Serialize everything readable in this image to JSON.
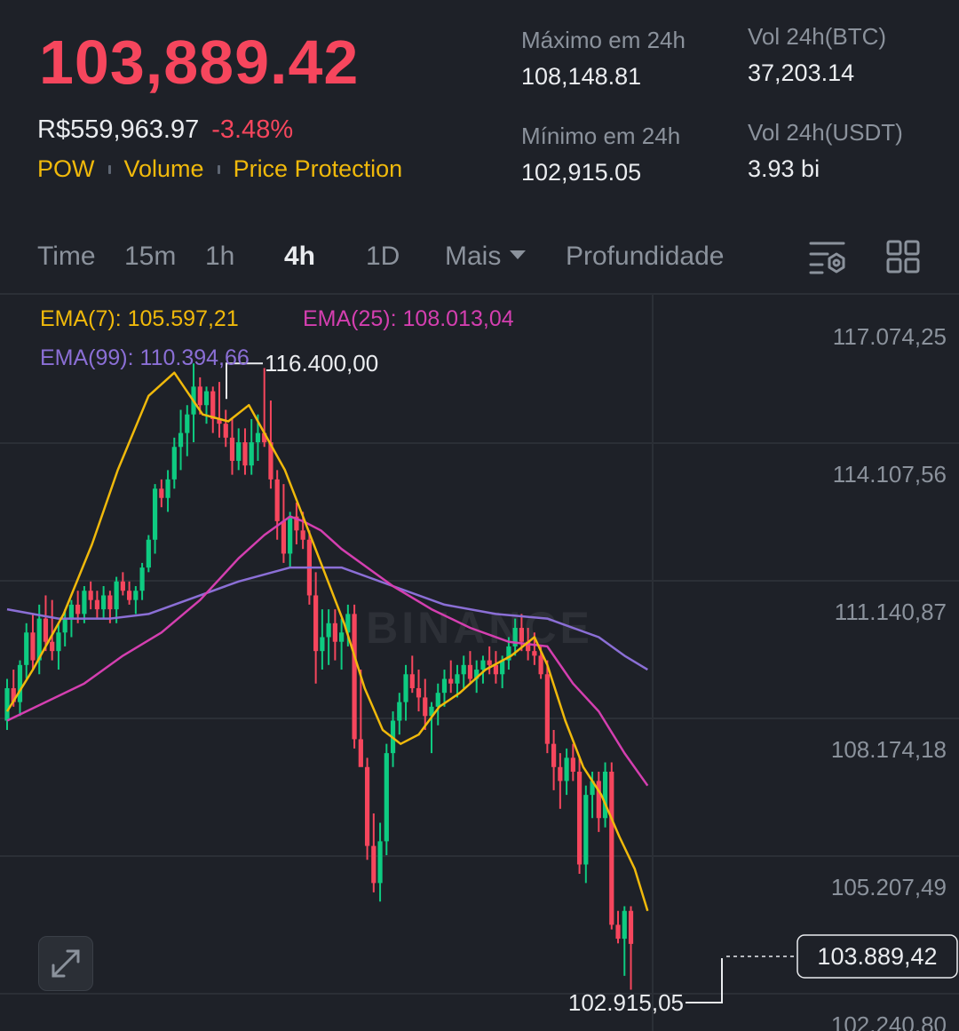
{
  "header": {
    "last_price": "103,889.42",
    "fiat_price": "R$559,963.97",
    "change_pct": "-3.48%",
    "tags": [
      "POW",
      "Volume",
      "Price Protection"
    ]
  },
  "stats": {
    "high_label": "Máximo em 24h",
    "high_value": "108,148.81",
    "low_label": "Mínimo em 24h",
    "low_value": "102,915.05",
    "vol_btc_label": "Vol 24h(BTC)",
    "vol_btc_value": "37,203.14",
    "vol_usdt_label": "Vol 24h(USDT)",
    "vol_usdt_value": "3.93 bi"
  },
  "tabs": {
    "time": "Time",
    "m15": "15m",
    "h1": "1h",
    "h4": "4h",
    "d1": "1D",
    "more": "Mais",
    "depth": "Profundidade",
    "active": "4h"
  },
  "icons": {
    "indicator_settings": "indicator-settings-icon",
    "layout": "layout-grid-icon",
    "expand": "expand-arrows-icon"
  },
  "colors": {
    "up": "#0ecb81",
    "down": "#f6465d",
    "ema7": "#f0b90b",
    "ema25": "#d43fb0",
    "ema99": "#8b6fd6",
    "accent": "#f0b90b",
    "background": "#1e2128"
  },
  "legend": {
    "ema7": "EMA(7): 105.597,21",
    "ema25": "EMA(25): 108.013,04",
    "ema99": "EMA(99): 110.394,66"
  },
  "watermark": "BINANCE",
  "chart_data": {
    "type": "candlestick",
    "interval": "4h",
    "ylim": [
      102240.8,
      117074.25
    ],
    "y_ticks": [
      "117.074,25",
      "114.107,56",
      "111.140,87",
      "108.174,18",
      "105.207,49",
      "102.240,80"
    ],
    "y_tick_values": [
      117074.25,
      114107.56,
      111140.87,
      108174.18,
      105207.49,
      102240.8
    ],
    "annotations": {
      "max_label": "116.400,00",
      "max_value": 116400.0,
      "min_label": "102.915,05",
      "min_value": 102915.05,
      "current_label": "103.889,42",
      "current_value": 103889.42
    },
    "candles": [
      [
        108700,
        109600,
        108500,
        109400
      ],
      [
        109400,
        109800,
        109000,
        109100
      ],
      [
        109100,
        110000,
        108800,
        109900
      ],
      [
        109900,
        110800,
        109600,
        110600
      ],
      [
        110600,
        111000,
        109800,
        110000
      ],
      [
        110000,
        111200,
        109700,
        110900
      ],
      [
        110900,
        111400,
        110200,
        110400
      ],
      [
        110400,
        111300,
        110000,
        110200
      ],
      [
        110200,
        110800,
        109800,
        110600
      ],
      [
        110600,
        111100,
        110300,
        110900
      ],
      [
        110900,
        111300,
        110500,
        111200
      ],
      [
        111200,
        111500,
        110800,
        111000
      ],
      [
        111000,
        111600,
        110800,
        111500
      ],
      [
        111500,
        111700,
        111100,
        111300
      ],
      [
        111300,
        111500,
        110900,
        111100
      ],
      [
        111100,
        111600,
        110900,
        111400
      ],
      [
        111400,
        111500,
        110800,
        111100
      ],
      [
        111100,
        111800,
        110800,
        111700
      ],
      [
        111700,
        111900,
        111400,
        111500
      ],
      [
        111500,
        111700,
        111200,
        111300
      ],
      [
        111300,
        111600,
        111000,
        111500
      ],
      [
        111500,
        112100,
        111300,
        112000
      ],
      [
        112000,
        112700,
        111900,
        112600
      ],
      [
        112600,
        113800,
        112300,
        113700
      ],
      [
        113700,
        113900,
        113300,
        113500
      ],
      [
        113500,
        114100,
        113200,
        113900
      ],
      [
        113900,
        114800,
        113700,
        114600
      ],
      [
        114600,
        115400,
        114100,
        114900
      ],
      [
        114900,
        115500,
        114400,
        115300
      ],
      [
        115300,
        116400,
        114700,
        115900
      ],
      [
        115900,
        116100,
        115300,
        115500
      ],
      [
        115500,
        115900,
        115100,
        115800
      ],
      [
        115800,
        115900,
        114900,
        115200
      ],
      [
        115200,
        116000,
        114800,
        115100
      ],
      [
        115100,
        115400,
        114600,
        114800
      ],
      [
        114800,
        115200,
        114000,
        114300
      ],
      [
        114300,
        115000,
        114100,
        114700
      ],
      [
        114700,
        115000,
        114000,
        114200
      ],
      [
        114200,
        115200,
        114000,
        114700
      ],
      [
        114700,
        115300,
        114300,
        114900
      ],
      [
        114900,
        116300,
        114600,
        114700
      ],
      [
        114700,
        115600,
        113700,
        113900
      ],
      [
        113900,
        114100,
        112600,
        113000
      ],
      [
        113000,
        113800,
        112100,
        112300
      ],
      [
        112300,
        113200,
        112000,
        113100
      ],
      [
        113100,
        113400,
        112500,
        112800
      ],
      [
        112800,
        113200,
        112400,
        112600
      ],
      [
        112600,
        112800,
        111200,
        111400
      ],
      [
        111400,
        111900,
        109500,
        110200
      ],
      [
        110200,
        111100,
        109800,
        110500
      ],
      [
        110500,
        111100,
        109900,
        110800
      ],
      [
        110800,
        111100,
        110000,
        110400
      ],
      [
        110400,
        110900,
        109800,
        110600
      ],
      [
        110600,
        111200,
        110300,
        111000
      ],
      [
        111000,
        111200,
        108100,
        108300
      ],
      [
        108300,
        109800,
        107800,
        107700
      ],
      [
        107700,
        107900,
        105700,
        106000
      ],
      [
        106000,
        106700,
        105000,
        105200
      ],
      [
        105200,
        106500,
        104800,
        106100
      ],
      [
        106100,
        108200,
        105800,
        108000
      ],
      [
        108000,
        108900,
        107700,
        108700
      ],
      [
        108700,
        109300,
        108400,
        109100
      ],
      [
        109100,
        109900,
        108700,
        109700
      ],
      [
        109700,
        110100,
        109300,
        109400
      ],
      [
        109400,
        109800,
        108900,
        109200
      ],
      [
        109200,
        109600,
        108500,
        108800
      ],
      [
        108800,
        109100,
        108000,
        109000
      ],
      [
        109000,
        109500,
        108600,
        109300
      ],
      [
        109300,
        109800,
        109000,
        109600
      ],
      [
        109600,
        110000,
        109300,
        109500
      ],
      [
        109500,
        109900,
        109200,
        109700
      ],
      [
        109700,
        110100,
        109400,
        109900
      ],
      [
        109900,
        110200,
        109500,
        109600
      ],
      [
        109600,
        110000,
        109300,
        109800
      ],
      [
        109800,
        110100,
        109500,
        110000
      ],
      [
        110000,
        110300,
        109700,
        109900
      ],
      [
        109900,
        110200,
        109500,
        109700
      ],
      [
        109700,
        110100,
        109400,
        110000
      ],
      [
        110000,
        110500,
        109800,
        110300
      ],
      [
        110300,
        110900,
        110100,
        110700
      ],
      [
        110700,
        111000,
        110200,
        110400
      ],
      [
        110400,
        110700,
        110000,
        110200
      ],
      [
        110200,
        110600,
        109900,
        110100
      ],
      [
        110100,
        110300,
        109600,
        109700
      ],
      [
        109700,
        110000,
        108000,
        108200
      ],
      [
        108200,
        108500,
        107200,
        107700
      ],
      [
        107700,
        108000,
        106800,
        107400
      ],
      [
        107400,
        108100,
        107100,
        107900
      ],
      [
        107900,
        108200,
        107400,
        107600
      ],
      [
        107600,
        107900,
        105400,
        105600
      ],
      [
        105600,
        107300,
        105200,
        107100
      ],
      [
        107100,
        107600,
        106600,
        107400
      ],
      [
        107400,
        107600,
        106300,
        106600
      ],
      [
        106600,
        107800,
        106400,
        107600
      ],
      [
        107600,
        107800,
        104200,
        104300
      ],
      [
        104300,
        104600,
        103900,
        104000
      ],
      [
        104000,
        104700,
        103200,
        104600
      ],
      [
        104600,
        104700,
        102900,
        103889
      ]
    ],
    "ema7": [
      [
        0,
        108900
      ],
      [
        10,
        109800
      ],
      [
        22,
        111000
      ],
      [
        33,
        112500
      ],
      [
        43,
        114100
      ],
      [
        55,
        115700
      ],
      [
        65,
        116200
      ],
      [
        76,
        115300
      ],
      [
        86,
        115150
      ],
      [
        94,
        115500
      ],
      [
        100,
        114900
      ],
      [
        108,
        114100
      ],
      [
        115,
        113100
      ],
      [
        122,
        112100
      ],
      [
        131,
        110800
      ],
      [
        139,
        109400
      ],
      [
        146,
        108500
      ],
      [
        153,
        108200
      ],
      [
        160,
        108400
      ],
      [
        168,
        109000
      ],
      [
        176,
        109300
      ],
      [
        186,
        109800
      ],
      [
        196,
        110100
      ],
      [
        205,
        110500
      ],
      [
        210,
        109900
      ],
      [
        217,
        108700
      ],
      [
        224,
        107700
      ],
      [
        231,
        107100
      ],
      [
        238,
        106200
      ],
      [
        244,
        105500
      ],
      [
        249,
        104600
      ]
    ],
    "ema25": [
      [
        0,
        108700
      ],
      [
        15,
        109100
      ],
      [
        30,
        109500
      ],
      [
        45,
        110100
      ],
      [
        60,
        110600
      ],
      [
        75,
        111300
      ],
      [
        90,
        112200
      ],
      [
        100,
        112700
      ],
      [
        110,
        113100
      ],
      [
        115,
        113000
      ],
      [
        122,
        112800
      ],
      [
        130,
        112400
      ],
      [
        140,
        112000
      ],
      [
        150,
        111600
      ],
      [
        165,
        111100
      ],
      [
        180,
        110700
      ],
      [
        195,
        110400
      ],
      [
        210,
        110300
      ],
      [
        220,
        109500
      ],
      [
        230,
        108900
      ],
      [
        240,
        108000
      ],
      [
        249,
        107300
      ]
    ],
    "ema99": [
      [
        0,
        111100
      ],
      [
        20,
        110900
      ],
      [
        40,
        110900
      ],
      [
        55,
        111000
      ],
      [
        70,
        111300
      ],
      [
        90,
        111700
      ],
      [
        110,
        112000
      ],
      [
        130,
        112000
      ],
      [
        150,
        111600
      ],
      [
        170,
        111200
      ],
      [
        190,
        111000
      ],
      [
        210,
        110900
      ],
      [
        230,
        110500
      ],
      [
        240,
        110100
      ],
      [
        249,
        109800
      ]
    ]
  }
}
